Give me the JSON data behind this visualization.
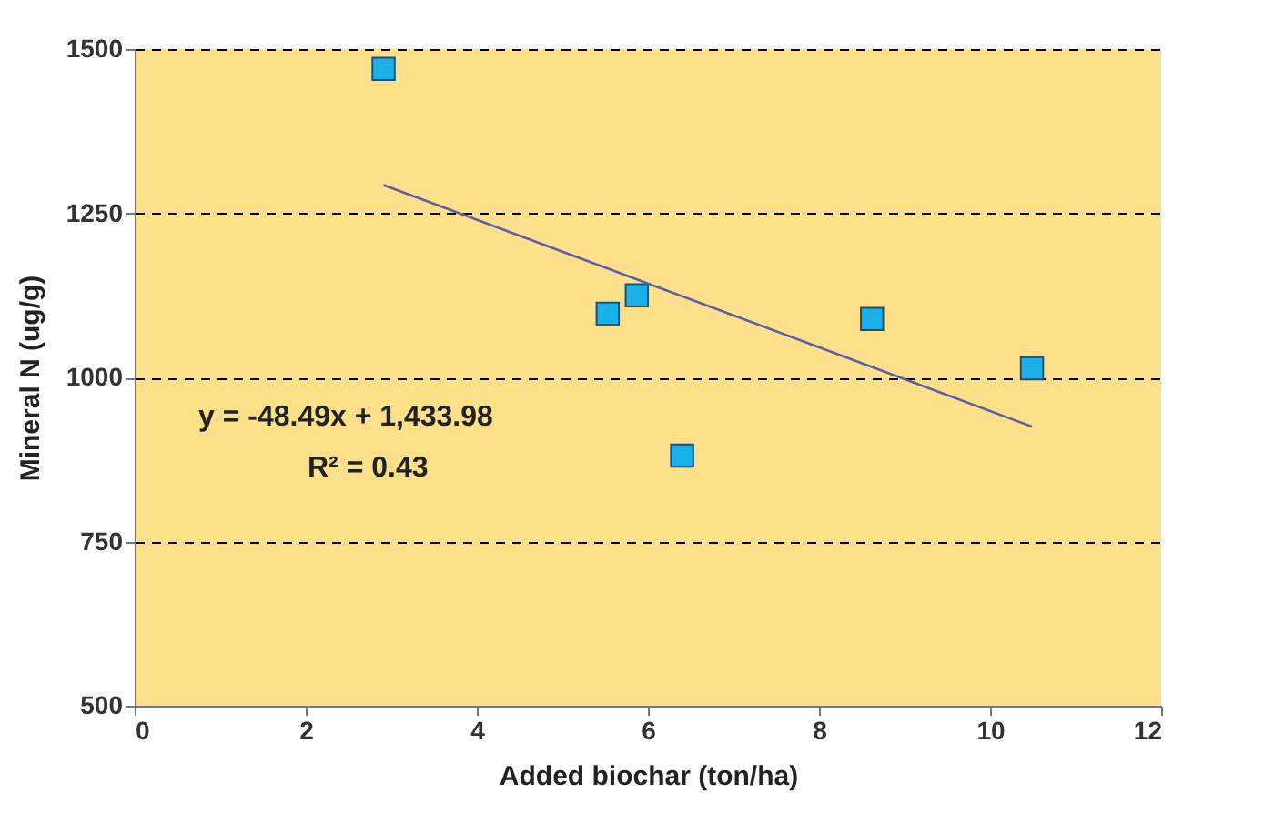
{
  "chart_data": {
    "type": "scatter",
    "xlabel": "Added biochar (ton/ha)",
    "ylabel": "Mineral N  (ug/g)",
    "xlim": [
      0,
      12
    ],
    "xticks": [
      0,
      2,
      4,
      6,
      8,
      10,
      12
    ],
    "ylim": [
      500,
      1500
    ],
    "yticks": [
      500,
      750,
      1000,
      1250,
      1500
    ],
    "grid": "y",
    "annotations": [
      "y = -48.49x + 1,433.98",
      "R² = 0.43"
    ],
    "series": [
      {
        "marker": "square",
        "color": "#1ab0e8",
        "x": [
          2.91,
          5.53,
          5.87,
          6.4,
          8.62,
          10.49
        ],
        "values": [
          1470,
          1097,
          1125,
          881,
          1089,
          1014
        ]
      },
      {
        "type": "line",
        "color": "#5b5ea6",
        "x": [
          2.91,
          10.49
        ],
        "values": [
          1293,
          925
        ]
      }
    ]
  }
}
